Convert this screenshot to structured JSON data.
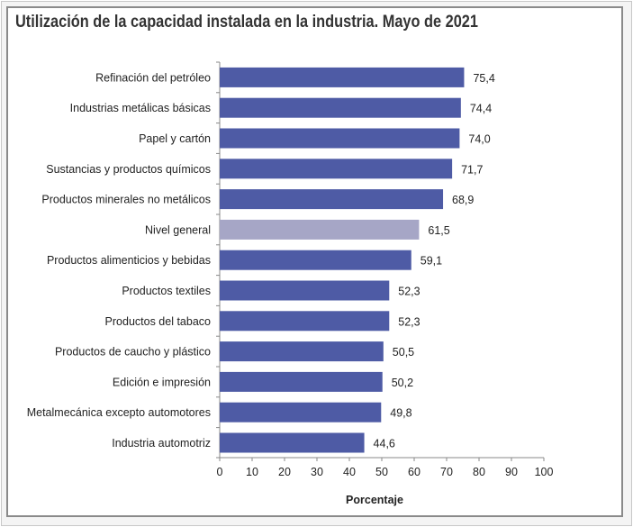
{
  "chart_data": {
    "type": "bar",
    "orientation": "horizontal",
    "title": "Utilización de la capacidad instalada en la industria. Mayo de 2021",
    "xlabel": "Porcentaje",
    "ylabel": "",
    "xlim": [
      0,
      100
    ],
    "xticks": [
      "0",
      "10",
      "20",
      "30",
      "40",
      "50",
      "60",
      "70",
      "80",
      "90",
      "100"
    ],
    "grid": false,
    "categories": [
      "Refinación del petróleo",
      "Industrias metálicas básicas",
      "Papel y cartón",
      "Sustancias y productos químicos",
      "Productos minerales no metálicos",
      "Nivel general",
      "Productos alimenticios y bebidas",
      "Productos textiles",
      "Productos del tabaco",
      "Productos de caucho y plástico",
      "Edición e impresión",
      "Metalmecánica excepto automotores",
      "Industria automotriz"
    ],
    "values": [
      75.4,
      74.4,
      74.0,
      71.7,
      68.9,
      61.5,
      59.1,
      52.3,
      52.3,
      50.5,
      50.2,
      49.8,
      44.6
    ],
    "value_labels": [
      "75,4",
      "74,4",
      "74,0",
      "71,7",
      "68,9",
      "61,5",
      "59,1",
      "52,3",
      "52,3",
      "50,5",
      "50,2",
      "49,8",
      "44,6"
    ],
    "colors": {
      "bar": "#4e5ba5",
      "highlight": "#a6a6c6",
      "highlight_category": "Nivel general"
    }
  }
}
